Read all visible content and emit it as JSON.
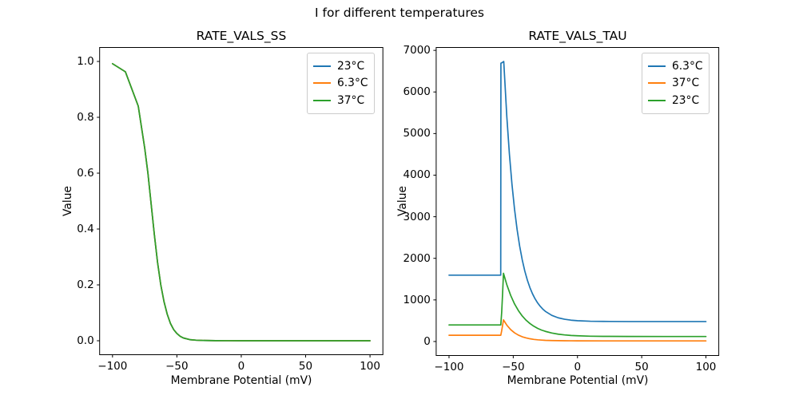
{
  "figure_title": "I for different temperatures",
  "palette": {
    "blue": "#1f77b4",
    "orange": "#ff7f0e",
    "green": "#2ca02c"
  },
  "chart_data": [
    {
      "type": "line",
      "title": "RATE_VALS_SS",
      "xlabel": "Membrane Potential (mV)",
      "ylabel": "Value",
      "xlim": [
        -110,
        110
      ],
      "ylim": [
        -0.05,
        1.05
      ],
      "xticks": [
        -100,
        -50,
        0,
        50,
        100
      ],
      "xtick_labels": [
        "−100",
        "−50",
        "0",
        "50",
        "100"
      ],
      "yticks": [
        0.0,
        0.2,
        0.4,
        0.6,
        0.8,
        1.0
      ],
      "ytick_labels": [
        "0.0",
        "0.2",
        "0.4",
        "0.6",
        "0.8",
        "1.0"
      ],
      "grid": false,
      "legend_position": "upper right",
      "series": [
        {
          "name": "23°C",
          "color": "#1f77b4",
          "x": [
            -100,
            -90,
            -80,
            -75,
            -72.5,
            -70,
            -67.5,
            -65,
            -62.5,
            -60,
            -57.5,
            -55,
            -52.5,
            -50,
            -47.5,
            -45,
            -40,
            -35,
            -30,
            -20,
            -10,
            0,
            25,
            50,
            75,
            100
          ],
          "y": [
            0.992,
            0.963,
            0.84,
            0.69,
            0.6,
            0.49,
            0.38,
            0.28,
            0.2,
            0.14,
            0.095,
            0.062,
            0.04,
            0.026,
            0.016,
            0.01,
            0.004,
            0.002,
            0.001,
            0.0004,
            0.0001,
            0,
            0,
            0,
            0,
            0
          ]
        },
        {
          "name": "6.3°C",
          "color": "#ff7f0e",
          "x": [
            -100,
            -90,
            -80,
            -75,
            -72.5,
            -70,
            -67.5,
            -65,
            -62.5,
            -60,
            -57.5,
            -55,
            -52.5,
            -50,
            -47.5,
            -45,
            -40,
            -35,
            -30,
            -20,
            -10,
            0,
            25,
            50,
            75,
            100
          ],
          "y": [
            0.992,
            0.963,
            0.84,
            0.69,
            0.6,
            0.49,
            0.38,
            0.28,
            0.2,
            0.14,
            0.095,
            0.062,
            0.04,
            0.026,
            0.016,
            0.01,
            0.004,
            0.002,
            0.001,
            0.0004,
            0.0001,
            0,
            0,
            0,
            0,
            0
          ]
        },
        {
          "name": "37°C",
          "color": "#2ca02c",
          "x": [
            -100,
            -90,
            -80,
            -75,
            -72.5,
            -70,
            -67.5,
            -65,
            -62.5,
            -60,
            -57.5,
            -55,
            -52.5,
            -50,
            -47.5,
            -45,
            -40,
            -35,
            -30,
            -20,
            -10,
            0,
            25,
            50,
            75,
            100
          ],
          "y": [
            0.992,
            0.963,
            0.84,
            0.69,
            0.6,
            0.49,
            0.38,
            0.28,
            0.2,
            0.14,
            0.095,
            0.062,
            0.04,
            0.026,
            0.016,
            0.01,
            0.004,
            0.002,
            0.001,
            0.0004,
            0.0001,
            0,
            0,
            0,
            0,
            0
          ]
        }
      ]
    },
    {
      "type": "line",
      "title": "RATE_VALS_TAU",
      "xlabel": "Membrane Potential (mV)",
      "ylabel": "Value",
      "xlim": [
        -110,
        110
      ],
      "ylim": [
        -336.6,
        7069.6
      ],
      "xticks": [
        -100,
        -50,
        0,
        50,
        100
      ],
      "xtick_labels": [
        "−100",
        "−50",
        "0",
        "50",
        "100"
      ],
      "yticks": [
        0,
        1000,
        2000,
        3000,
        4000,
        5000,
        6000,
        7000
      ],
      "ytick_labels": [
        "0",
        "1000",
        "2000",
        "3000",
        "4000",
        "5000",
        "6000",
        "7000"
      ],
      "grid": false,
      "legend_position": "upper right",
      "series": [
        {
          "name": "6.3°C",
          "color": "#1f77b4",
          "x": [
            -100,
            -60,
            -59.75,
            -59.6,
            -58.5,
            -57.4,
            -55,
            -53,
            -51,
            -49,
            -47,
            -45,
            -43,
            -41,
            -39,
            -37,
            -35,
            -33,
            -31,
            -29,
            -27,
            -25,
            -20,
            -15,
            -10,
            -5,
            0,
            10,
            20,
            40,
            60,
            80,
            100
          ],
          "y": [
            1595,
            1595,
            1595,
            6690,
            6710,
            6733,
            5404,
            4512,
            3781,
            3182,
            2693,
            2292,
            1963,
            1694,
            1474,
            1294,
            1147,
            1026,
            927,
            846,
            779,
            725,
            629,
            570,
            535,
            513,
            500,
            487,
            483,
            480,
            480,
            480,
            480
          ]
        },
        {
          "name": "37°C",
          "color": "#ff7f0e",
          "x": [
            -100,
            -60,
            -59.7,
            -59,
            -58.3,
            -57.6,
            -55,
            -52,
            -49,
            -46,
            -43,
            -40,
            -37,
            -34,
            -31,
            -28,
            -25,
            -20,
            -15,
            -10,
            -5,
            0,
            20,
            50,
            100
          ],
          "y": [
            150,
            150,
            150,
            260,
            390,
            520,
            393,
            286,
            209,
            154,
            114,
            86,
            66,
            51,
            41,
            34,
            28,
            23,
            20,
            18,
            17,
            16,
            15,
            15,
            15
          ]
        },
        {
          "name": "23°C",
          "color": "#2ca02c",
          "x": [
            -100,
            -60,
            -59.7,
            -59,
            -58.3,
            -57.6,
            -55,
            -52,
            -49,
            -46,
            -43,
            -40,
            -37,
            -34,
            -31,
            -28,
            -25,
            -20,
            -15,
            -10,
            -5,
            0,
            10,
            20,
            40,
            70,
            100
          ],
          "y": [
            398,
            398,
            398,
            700,
            1150,
            1640,
            1365,
            1108,
            904,
            743,
            614,
            512,
            432,
            368,
            316,
            275,
            244,
            204,
            177,
            159,
            146,
            138,
            128,
            124,
            121,
            120,
            120
          ]
        }
      ]
    }
  ]
}
